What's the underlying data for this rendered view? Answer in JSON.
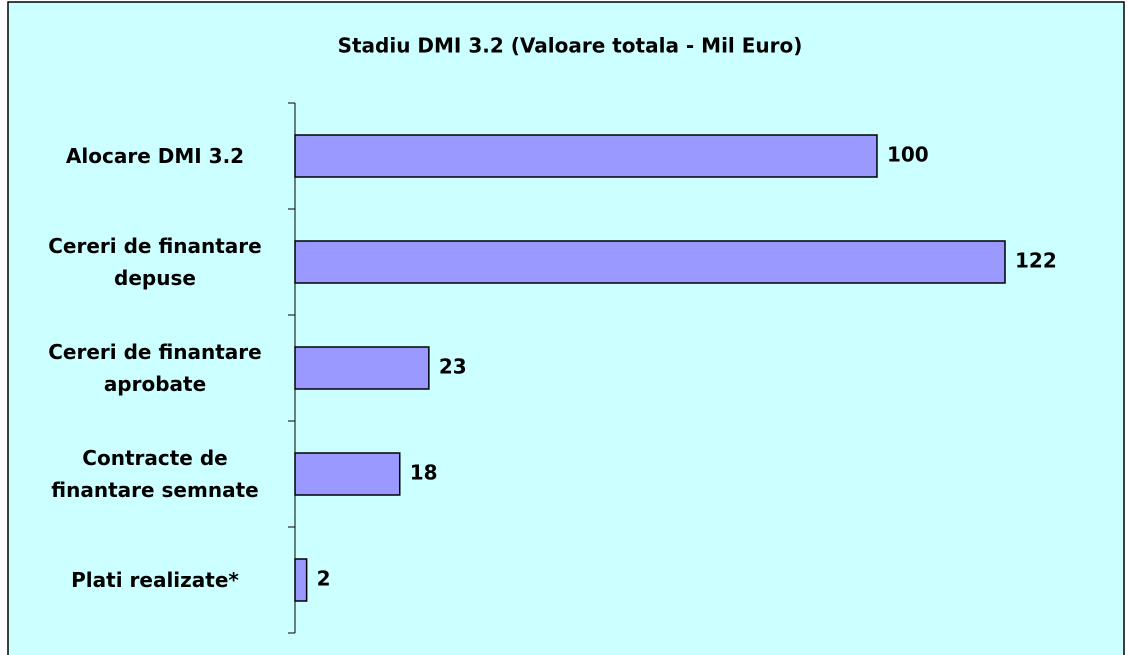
{
  "chart_data": {
    "type": "bar",
    "orientation": "horizontal",
    "title": "Stadiu DMI 3.2 (Valoare totala - Mil Euro)",
    "categories": [
      "Alocare DMI 3.2",
      "Cereri de finantare\ndepuse",
      "Cereri de finantare\naprobate",
      "Contracte de\nfinantare semnate",
      "Plati realizate*"
    ],
    "values": [
      100,
      122,
      23,
      18,
      2
    ],
    "color": "#9999ff"
  }
}
